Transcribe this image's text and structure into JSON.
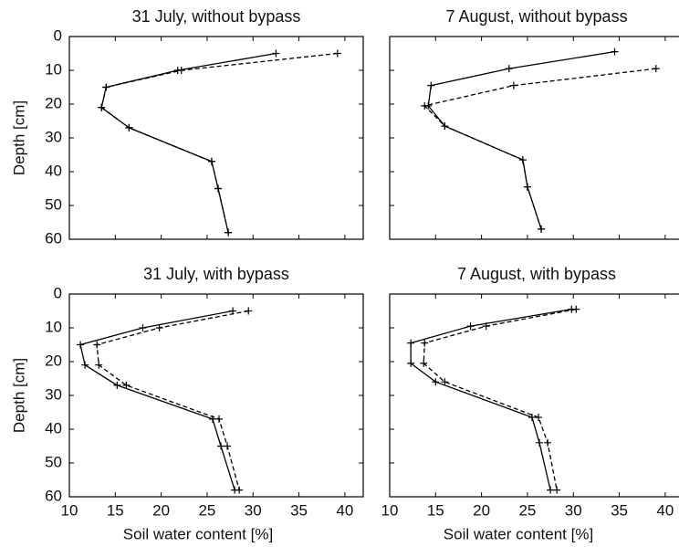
{
  "chart_data": [
    {
      "type": "line",
      "title": "31 July, without bypass",
      "ylabel": "Depth [cm]",
      "xlim": [
        10,
        42
      ],
      "xticks": [
        10,
        15,
        20,
        25,
        30,
        35,
        40
      ],
      "x_tick_labels": false,
      "ylim": [
        0,
        60
      ],
      "yticks": [
        0,
        10,
        20,
        30,
        40,
        50,
        60
      ],
      "y_tick_labels": true,
      "y_inverted": true,
      "marker": "+",
      "series": [
        {
          "color": "#000000",
          "linestyle": "solid",
          "x": [
            32.5,
            21.8,
            14,
            13.5,
            16.5,
            25.5,
            26.2,
            27.3
          ],
          "values": [
            5,
            10,
            15,
            21,
            27,
            37,
            45,
            58
          ]
        },
        {
          "color": "#000000",
          "linestyle": "dashed",
          "x": [
            39.2,
            22.2,
            14,
            13.5,
            16.5,
            25.5,
            26.2,
            27.3
          ],
          "values": [
            5,
            10,
            15,
            21,
            27,
            37,
            45,
            58
          ]
        }
      ]
    },
    {
      "type": "line",
      "title": "7 August, without bypass",
      "xlim": [
        10,
        42
      ],
      "xticks": [
        10,
        15,
        20,
        25,
        30,
        35,
        40
      ],
      "x_tick_labels": false,
      "ylim": [
        0,
        60
      ],
      "yticks": [
        0,
        10,
        20,
        30,
        40,
        50,
        60
      ],
      "y_tick_labels": false,
      "y_inverted": true,
      "marker": "+",
      "series": [
        {
          "color": "#000000",
          "linestyle": "solid",
          "x": [
            34.5,
            23,
            14.5,
            14.2,
            16,
            24.5,
            25,
            26.5
          ],
          "values": [
            4.5,
            9.5,
            14.5,
            20.5,
            26.5,
            36.5,
            44.5,
            57
          ]
        },
        {
          "color": "#000000",
          "linestyle": "dashed",
          "x": [
            39,
            23.5,
            13.8,
            16,
            24.5,
            25,
            26.5
          ],
          "values": [
            9.5,
            14.5,
            20.5,
            26.5,
            36.5,
            44.5,
            57
          ]
        }
      ]
    },
    {
      "type": "line",
      "title": "31 July, with bypass",
      "ylabel": "Depth [cm]",
      "xlabel": "Soil water content [%]",
      "xlim": [
        10,
        42
      ],
      "xticks": [
        10,
        15,
        20,
        25,
        30,
        35,
        40
      ],
      "x_tick_labels": true,
      "ylim": [
        0,
        60
      ],
      "yticks": [
        0,
        10,
        20,
        30,
        40,
        50,
        60
      ],
      "y_tick_labels": true,
      "y_inverted": true,
      "marker": "+",
      "series": [
        {
          "color": "#000000",
          "linestyle": "solid",
          "x": [
            27.8,
            18,
            11.2,
            11.7,
            15.2,
            25.6,
            26.5,
            28
          ],
          "values": [
            5,
            10,
            15,
            21,
            27,
            37,
            45,
            58
          ]
        },
        {
          "color": "#000000",
          "linestyle": "dashed",
          "x": [
            29.5,
            19.8,
            13,
            13.2,
            16.2,
            26.3,
            27.2,
            28.5
          ],
          "values": [
            5,
            10,
            15,
            21,
            27,
            37,
            45,
            58
          ]
        }
      ]
    },
    {
      "type": "line",
      "title": "7 August, with bypass",
      "xlabel": "Soil water content [%]",
      "xlim": [
        10,
        42
      ],
      "xticks": [
        10,
        15,
        20,
        25,
        30,
        35,
        40
      ],
      "x_tick_labels": true,
      "ylim": [
        0,
        60
      ],
      "yticks": [
        0,
        10,
        20,
        30,
        40,
        50,
        60
      ],
      "y_tick_labels": false,
      "y_inverted": true,
      "marker": "+",
      "series": [
        {
          "color": "#000000",
          "linestyle": "solid",
          "x": [
            29.8,
            18.8,
            12.3,
            12.3,
            15,
            25.5,
            26.3,
            27.5
          ],
          "values": [
            4.5,
            9.5,
            14.5,
            20.5,
            26,
            36.5,
            44,
            58
          ]
        },
        {
          "color": "#000000",
          "linestyle": "dashed",
          "x": [
            30.3,
            20.5,
            13.8,
            13.7,
            16,
            26.2,
            27.2,
            28.2
          ],
          "values": [
            4.5,
            9.5,
            14.5,
            20.5,
            26,
            36.5,
            44,
            58
          ]
        }
      ]
    }
  ]
}
